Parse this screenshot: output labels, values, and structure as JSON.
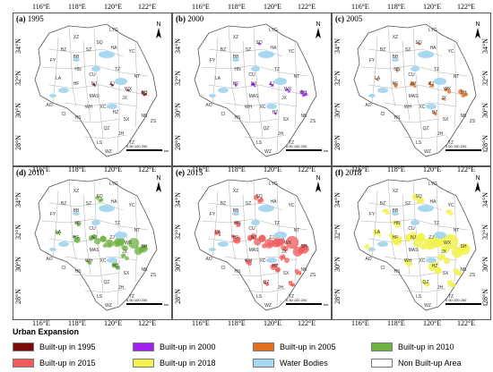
{
  "panels": [
    {
      "label": "(a)",
      "year": "1995",
      "color": "#7a0a0a"
    },
    {
      "label": "(b)",
      "year": "2000",
      "color": "#a020f0"
    },
    {
      "label": "(c)",
      "year": "2005",
      "color": "#e07020"
    },
    {
      "label": "(d)",
      "year": "2010",
      "color": "#6db33f"
    },
    {
      "label": "(e)",
      "year": "2015",
      "color": "#f05a5a"
    },
    {
      "label": "(f)",
      "year": "2018",
      "color": "#f2f250"
    }
  ],
  "longitudes": [
    "116°E",
    "118°E",
    "120°E",
    "122°E"
  ],
  "latitudes": [
    "34°N",
    "32°N",
    "30°N",
    "28°N"
  ],
  "north": "N",
  "scale_bar": {
    "ticks": "0 50 100 200",
    "unit": "km"
  },
  "city_labels": [
    "LYG",
    "XZ",
    "SQ",
    "HA",
    "YC",
    "SZ",
    "BB",
    "FY",
    "BZ",
    "HN",
    "CU",
    "TZ",
    "NT",
    "LA",
    "HF",
    "NJ",
    "ZJ",
    "WX",
    "MAS",
    "SH",
    "WH",
    "XC",
    "JX",
    "HZ",
    "HS",
    "AO",
    "CI",
    "SX",
    "NB",
    "ZS",
    "QZ",
    "JH",
    "TZ",
    "LS",
    "WZ"
  ],
  "legend": {
    "title": "Urban Expansion",
    "items": [
      {
        "label": "Built-up in 1995",
        "color": "#7a0a0a"
      },
      {
        "label": "Built-up in 2000",
        "color": "#a020f0"
      },
      {
        "label": "Built-up in 2005",
        "color": "#e07020"
      },
      {
        "label": "Built-up in 2010",
        "color": "#6db33f"
      },
      {
        "label": "Built-up in 2015",
        "color": "#f05a5a"
      },
      {
        "label": "Built-up in 2018",
        "color": "#f2f250"
      },
      {
        "label": "Water Bodies",
        "color": "#a8d8f0"
      },
      {
        "label": "Non Built-up Area",
        "color": "#ffffff"
      }
    ]
  }
}
